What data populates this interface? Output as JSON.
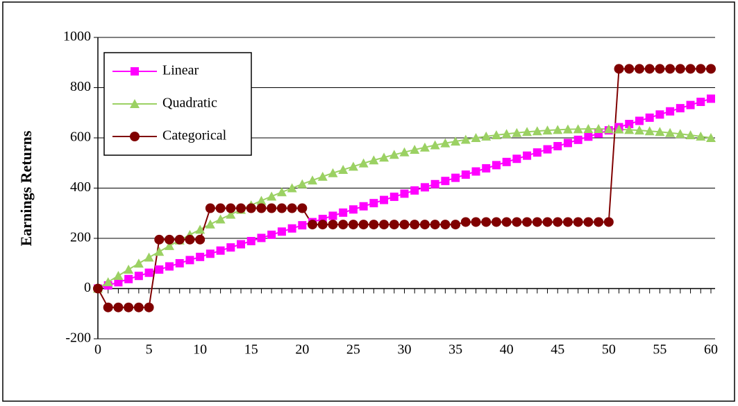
{
  "chart_data": {
    "type": "line",
    "y_label": "Earnings Returns",
    "x": [
      0,
      1,
      2,
      3,
      4,
      5,
      6,
      7,
      8,
      9,
      10,
      11,
      12,
      13,
      14,
      15,
      16,
      17,
      18,
      19,
      20,
      21,
      22,
      23,
      24,
      25,
      26,
      27,
      28,
      29,
      30,
      31,
      32,
      33,
      34,
      35,
      36,
      37,
      38,
      39,
      40,
      41,
      42,
      43,
      44,
      45,
      46,
      47,
      48,
      49,
      50,
      51,
      52,
      53,
      54,
      55,
      56,
      57,
      58,
      59,
      60
    ],
    "series": [
      {
        "name": "Linear",
        "color": "#ff00ff",
        "marker": "square",
        "values": [
          0,
          12.6,
          25.2,
          37.8,
          50.4,
          63,
          75.6,
          88.2,
          100.8,
          113.4,
          126,
          138.6,
          151.2,
          163.8,
          176.4,
          189,
          201.6,
          214.2,
          226.8,
          239.4,
          252,
          264.6,
          277.2,
          289.8,
          302.4,
          315,
          327.6,
          340.2,
          352.8,
          365.4,
          378,
          390.6,
          403.2,
          415.8,
          428.4,
          441,
          453.6,
          466.2,
          478.8,
          491.4,
          504,
          516.6,
          529.2,
          541.8,
          554.4,
          567,
          579.6,
          592.2,
          604.8,
          617.4,
          630,
          642.6,
          655.2,
          667.8,
          680.4,
          693,
          705.6,
          718.2,
          730.8,
          743.4,
          756
        ]
      },
      {
        "name": "Quadratic",
        "color": "#9bd163",
        "marker": "triangle",
        "values": [
          0,
          26,
          51,
          76,
          100,
          124,
          147,
          170,
          192,
          214,
          235,
          256,
          276,
          295,
          314,
          332,
          350,
          367,
          384,
          400,
          416,
          431,
          446,
          460,
          473,
          486,
          499,
          511,
          522,
          533,
          543,
          553,
          562,
          571,
          579,
          586,
          593,
          600,
          606,
          611,
          616,
          620,
          624,
          627,
          630,
          632,
          634,
          635,
          636,
          636,
          635,
          634,
          632,
          630,
          627,
          624,
          620,
          616,
          611,
          606,
          600
        ]
      },
      {
        "name": "Categorical",
        "color": "#800000",
        "marker": "circle",
        "values": [
          0,
          -75,
          -75,
          -75,
          -75,
          -75,
          195,
          195,
          195,
          195,
          195,
          320,
          320,
          320,
          320,
          320,
          320,
          320,
          320,
          320,
          320,
          255,
          255,
          255,
          255,
          255,
          255,
          255,
          255,
          255,
          255,
          255,
          255,
          255,
          255,
          255,
          265,
          265,
          265,
          265,
          265,
          265,
          265,
          265,
          265,
          265,
          265,
          265,
          265,
          265,
          265,
          875,
          875,
          875,
          875,
          875,
          875,
          875,
          875,
          875,
          875
        ]
      }
    ],
    "xlim": [
      0,
      60
    ],
    "xticks": [
      0,
      5,
      10,
      15,
      20,
      25,
      30,
      35,
      40,
      45,
      50,
      55,
      60
    ],
    "ylim": [
      -200,
      1000
    ],
    "yticks": [
      -200,
      0,
      200,
      400,
      600,
      800,
      1000
    ],
    "grid": true,
    "legend": "upper left"
  }
}
